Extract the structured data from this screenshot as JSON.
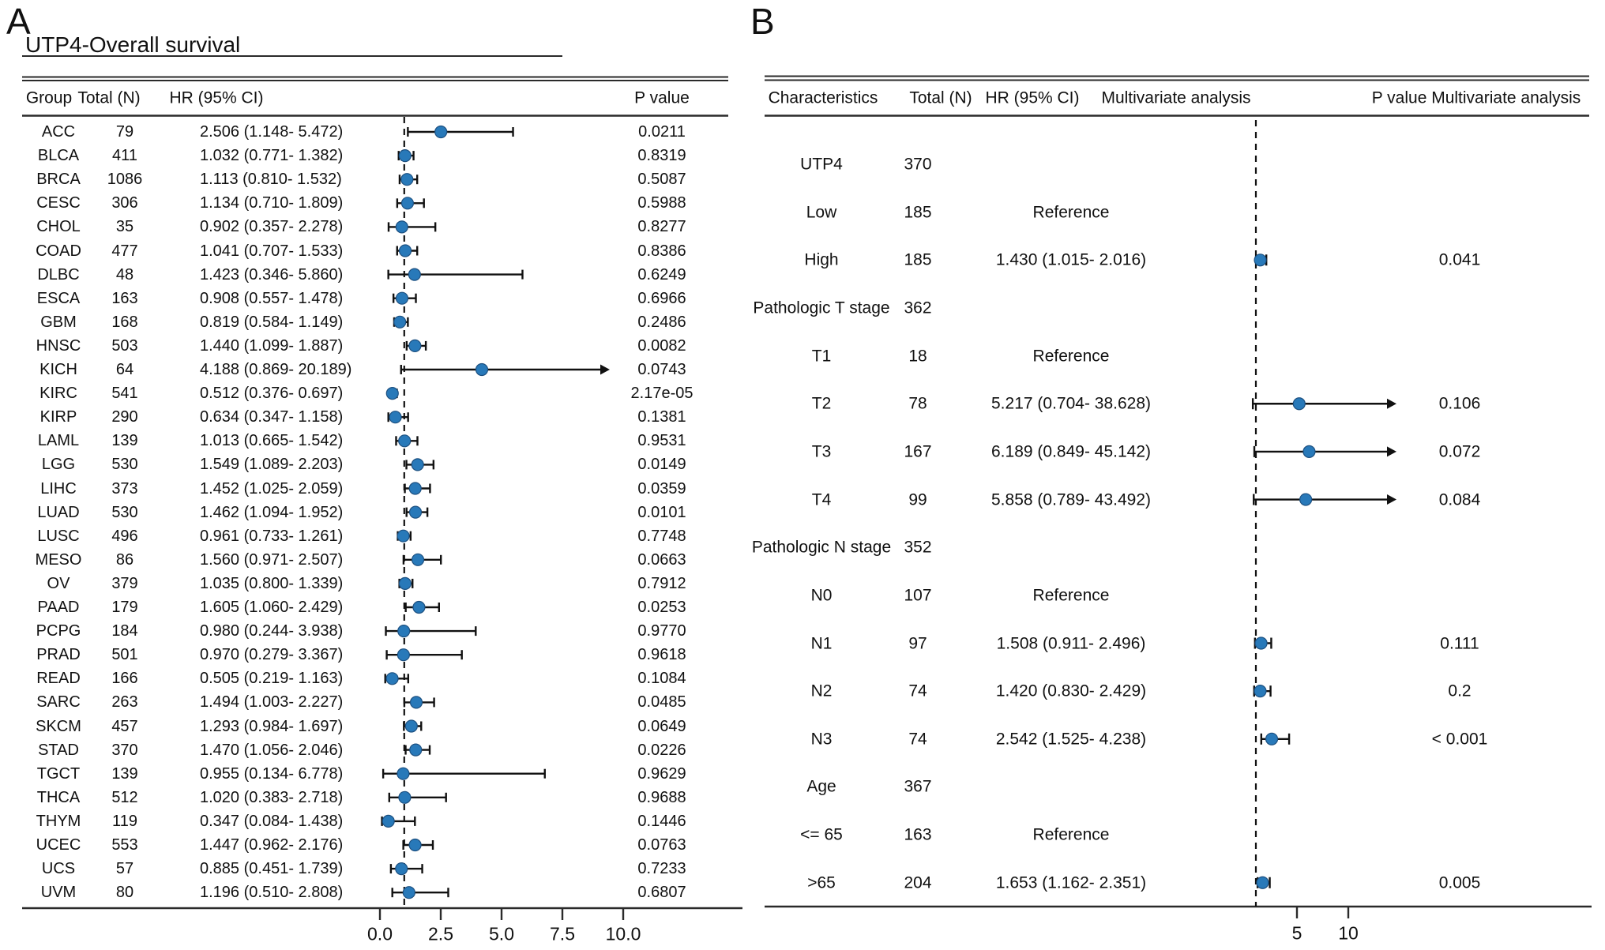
{
  "panelA": {
    "label": "A",
    "title": "UTP4-Overall survival",
    "headers": {
      "group": "Group",
      "total": "Total (N)",
      "hr_ci": "HR (95% CI)",
      "p": "P value"
    },
    "axis_ticks": [
      "0.0",
      "2.5",
      "5.0",
      "7.5",
      "10.0"
    ]
  },
  "panelB": {
    "label": "B",
    "headers": {
      "characteristics": "Characteristics",
      "total": "Total (N)",
      "hr_ci": "HR (95% CI)",
      "analysis": "Multivariate analysis",
      "p": "P value Multivariate analysis"
    },
    "reference_label": "Reference",
    "axis_ticks": [
      "5",
      "10"
    ]
  },
  "colors": {
    "marker": "#2879b9",
    "marker_edge": "#1d5080",
    "line": "#111111",
    "rule": "#2a2a2a"
  },
  "chart_data": [
    {
      "type": "scatter",
      "variant": "forest",
      "title": "UTP4-Overall survival",
      "xlim": [
        0,
        12
      ],
      "x_ticks": [
        0,
        2.5,
        5,
        7.5,
        10
      ],
      "x_tick_labels": [
        "0.0",
        "2.5",
        "5.0",
        "7.5",
        "10.0"
      ],
      "reference_line_x": 1,
      "rows": [
        {
          "group": "ACC",
          "total": 79,
          "hr": 2.506,
          "lo": 1.148,
          "hi": 5.472,
          "p": "0.0211"
        },
        {
          "group": "BLCA",
          "total": 411,
          "hr": 1.032,
          "lo": 0.771,
          "hi": 1.382,
          "p": "0.8319"
        },
        {
          "group": "BRCA",
          "total": 1086,
          "hr": 1.113,
          "lo": 0.81,
          "hi": 1.532,
          "p": "0.5087"
        },
        {
          "group": "CESC",
          "total": 306,
          "hr": 1.134,
          "lo": 0.71,
          "hi": 1.809,
          "p": "0.5988"
        },
        {
          "group": "CHOL",
          "total": 35,
          "hr": 0.902,
          "lo": 0.357,
          "hi": 2.278,
          "p": "0.8277"
        },
        {
          "group": "COAD",
          "total": 477,
          "hr": 1.041,
          "lo": 0.707,
          "hi": 1.533,
          "p": "0.8386"
        },
        {
          "group": "DLBC",
          "total": 48,
          "hr": 1.423,
          "lo": 0.346,
          "hi": 5.86,
          "p": "0.6249"
        },
        {
          "group": "ESCA",
          "total": 163,
          "hr": 0.908,
          "lo": 0.557,
          "hi": 1.478,
          "p": "0.6966"
        },
        {
          "group": "GBM",
          "total": 168,
          "hr": 0.819,
          "lo": 0.584,
          "hi": 1.149,
          "p": "0.2486"
        },
        {
          "group": "HNSC",
          "total": 503,
          "hr": 1.44,
          "lo": 1.099,
          "hi": 1.887,
          "p": "0.0082"
        },
        {
          "group": "KICH",
          "total": 64,
          "hr": 4.188,
          "lo": 0.869,
          "hi": 20.189,
          "p": "0.0743"
        },
        {
          "group": "KIRC",
          "total": 541,
          "hr": 0.512,
          "lo": 0.376,
          "hi": 0.697,
          "p": "2.17e-05"
        },
        {
          "group": "KIRP",
          "total": 290,
          "hr": 0.634,
          "lo": 0.347,
          "hi": 1.158,
          "p": "0.1381"
        },
        {
          "group": "LAML",
          "total": 139,
          "hr": 1.013,
          "lo": 0.665,
          "hi": 1.542,
          "p": "0.9531"
        },
        {
          "group": "LGG",
          "total": 530,
          "hr": 1.549,
          "lo": 1.089,
          "hi": 2.203,
          "p": "0.0149"
        },
        {
          "group": "LIHC",
          "total": 373,
          "hr": 1.452,
          "lo": 1.025,
          "hi": 2.059,
          "p": "0.0359"
        },
        {
          "group": "LUAD",
          "total": 530,
          "hr": 1.462,
          "lo": 1.094,
          "hi": 1.952,
          "p": "0.0101"
        },
        {
          "group": "LUSC",
          "total": 496,
          "hr": 0.961,
          "lo": 0.733,
          "hi": 1.261,
          "p": "0.7748"
        },
        {
          "group": "MESO",
          "total": 86,
          "hr": 1.56,
          "lo": 0.971,
          "hi": 2.507,
          "p": "0.0663"
        },
        {
          "group": "OV",
          "total": 379,
          "hr": 1.035,
          "lo": 0.8,
          "hi": 1.339,
          "p": "0.7912"
        },
        {
          "group": "PAAD",
          "total": 179,
          "hr": 1.605,
          "lo": 1.06,
          "hi": 2.429,
          "p": "0.0253"
        },
        {
          "group": "PCPG",
          "total": 184,
          "hr": 0.98,
          "lo": 0.244,
          "hi": 3.938,
          "p": "0.9770"
        },
        {
          "group": "PRAD",
          "total": 501,
          "hr": 0.97,
          "lo": 0.279,
          "hi": 3.367,
          "p": "0.9618"
        },
        {
          "group": "READ",
          "total": 166,
          "hr": 0.505,
          "lo": 0.219,
          "hi": 1.163,
          "p": "0.1084"
        },
        {
          "group": "SARC",
          "total": 263,
          "hr": 1.494,
          "lo": 1.003,
          "hi": 2.227,
          "p": "0.0485"
        },
        {
          "group": "SKCM",
          "total": 457,
          "hr": 1.293,
          "lo": 0.984,
          "hi": 1.697,
          "p": "0.0649"
        },
        {
          "group": "STAD",
          "total": 370,
          "hr": 1.47,
          "lo": 1.056,
          "hi": 2.046,
          "p": "0.0226"
        },
        {
          "group": "TGCT",
          "total": 139,
          "hr": 0.955,
          "lo": 0.134,
          "hi": 6.778,
          "p": "0.9629"
        },
        {
          "group": "THCA",
          "total": 512,
          "hr": 1.02,
          "lo": 0.383,
          "hi": 2.718,
          "p": "0.9688"
        },
        {
          "group": "THYM",
          "total": 119,
          "hr": 0.347,
          "lo": 0.084,
          "hi": 1.438,
          "p": "0.1446"
        },
        {
          "group": "UCEC",
          "total": 553,
          "hr": 1.447,
          "lo": 0.962,
          "hi": 2.176,
          "p": "0.0763"
        },
        {
          "group": "UCS",
          "total": 57,
          "hr": 0.885,
          "lo": 0.451,
          "hi": 1.739,
          "p": "0.7233"
        },
        {
          "group": "UVM",
          "total": 80,
          "hr": 1.196,
          "lo": 0.51,
          "hi": 2.808,
          "p": "0.6807"
        }
      ]
    },
    {
      "type": "scatter",
      "variant": "forest",
      "title": "Multivariate analysis",
      "x_ticks": [
        5,
        10
      ],
      "x_tick_labels": [
        "5",
        "10"
      ],
      "reference_line_x": 1,
      "rows": [
        {
          "label": "UTP4",
          "total": 370,
          "kind": "group"
        },
        {
          "label": "Low",
          "total": 185,
          "kind": "reference"
        },
        {
          "label": "High",
          "total": 185,
          "kind": "estimate",
          "hr": 1.43,
          "lo": 1.015,
          "hi": 2.016,
          "p": "0.041"
        },
        {
          "label": "Pathologic T stage",
          "total": 362,
          "kind": "group"
        },
        {
          "label": "T1",
          "total": 18,
          "kind": "reference"
        },
        {
          "label": "T2",
          "total": 78,
          "kind": "estimate",
          "hr": 5.217,
          "lo": 0.704,
          "hi": 38.628,
          "p": "0.106"
        },
        {
          "label": "T3",
          "total": 167,
          "kind": "estimate",
          "hr": 6.189,
          "lo": 0.849,
          "hi": 45.142,
          "p": "0.072"
        },
        {
          "label": "T4",
          "total": 99,
          "kind": "estimate",
          "hr": 5.858,
          "lo": 0.789,
          "hi": 43.492,
          "p": "0.084"
        },
        {
          "label": "Pathologic N stage",
          "total": 352,
          "kind": "group"
        },
        {
          "label": "N0",
          "total": 107,
          "kind": "reference"
        },
        {
          "label": "N1",
          "total": 97,
          "kind": "estimate",
          "hr": 1.508,
          "lo": 0.911,
          "hi": 2.496,
          "p": "0.111"
        },
        {
          "label": "N2",
          "total": 74,
          "kind": "estimate",
          "hr": 1.42,
          "lo": 0.83,
          "hi": 2.429,
          "p": "0.2"
        },
        {
          "label": "N3",
          "total": 74,
          "kind": "estimate",
          "hr": 2.542,
          "lo": 1.525,
          "hi": 4.238,
          "p": "< 0.001"
        },
        {
          "label": "Age",
          "total": 367,
          "kind": "group"
        },
        {
          "label": "<= 65",
          "total": 163,
          "kind": "reference"
        },
        {
          "label": ">65",
          "total": 204,
          "kind": "estimate",
          "hr": 1.653,
          "lo": 1.162,
          "hi": 2.351,
          "p": "0.005"
        }
      ]
    }
  ]
}
